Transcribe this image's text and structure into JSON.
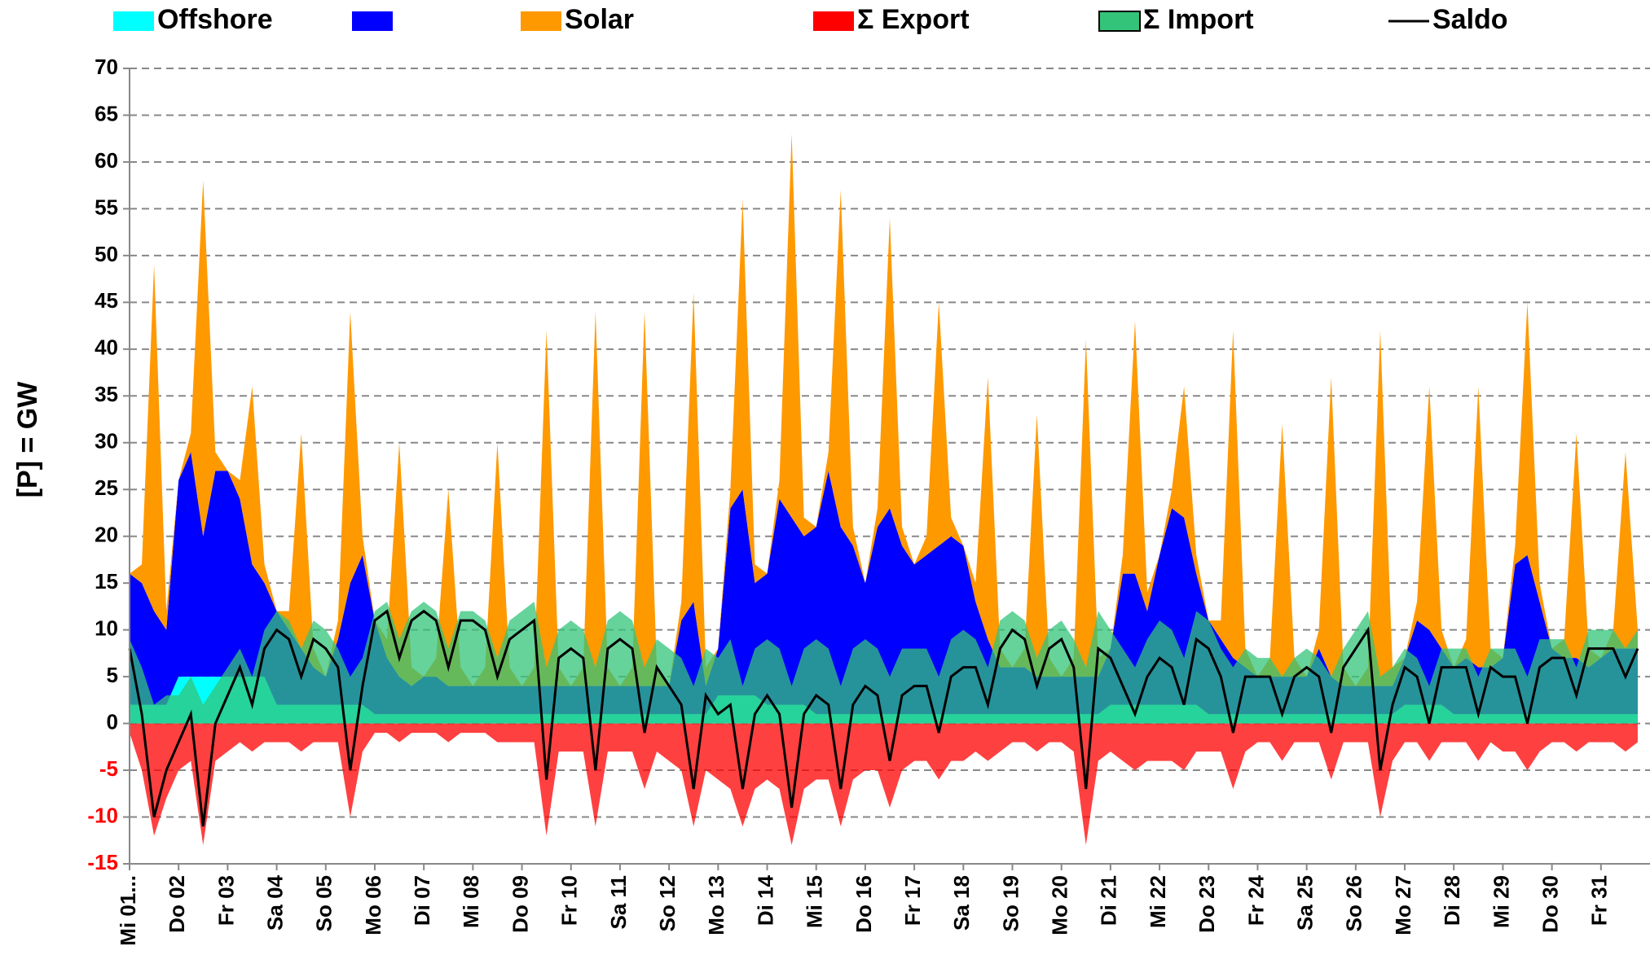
{
  "chart_data": {
    "type": "area",
    "y_label": "[P] = GW",
    "ylim": [
      -15,
      70
    ],
    "yticks": [
      -15,
      -10,
      -5,
      0,
      5,
      10,
      15,
      20,
      25,
      30,
      35,
      40,
      45,
      50,
      55,
      60,
      65,
      70
    ],
    "negative_tick_color": "#ff0000",
    "grid": true,
    "categories": [
      "Mi 01...",
      null,
      null,
      null,
      "Do 02",
      null,
      null,
      null,
      "Fr 03",
      null,
      null,
      null,
      "Sa 04",
      null,
      null,
      null,
      "So 05",
      null,
      null,
      null,
      "Mo 06",
      null,
      null,
      null,
      "Di 07",
      null,
      null,
      null,
      "Mi 08",
      null,
      null,
      null,
      "Do 09",
      null,
      null,
      null,
      "Fr 10",
      null,
      null,
      null,
      "Sa 11",
      null,
      null,
      null,
      "So 12",
      null,
      null,
      null,
      "Mo 13",
      null,
      null,
      null,
      "Di 14",
      null,
      null,
      null,
      "Mi 15",
      null,
      null,
      null,
      "Do 16",
      null,
      null,
      null,
      "Fr 17",
      null,
      null,
      null,
      "Sa 18",
      null,
      null,
      null,
      "So 19",
      null,
      null,
      null,
      "Mo 20",
      null,
      null,
      null,
      "Di 21",
      null,
      null,
      null,
      "Mi 22",
      null,
      null,
      null,
      "Do 23",
      null,
      null,
      null,
      "Fr 24",
      null,
      null,
      null,
      "Sa 25",
      null,
      null,
      null,
      "So 26",
      null,
      null,
      null,
      "Mo 27",
      null,
      null,
      null,
      "Di 28",
      null,
      null,
      null,
      "Mi 29",
      null,
      null,
      null,
      "Do 30",
      null,
      null,
      null,
      "Fr 31",
      null,
      null,
      null
    ],
    "series": [
      {
        "name": "Offshore",
        "color": "#00ffff",
        "style": "stacked-area",
        "values": [
          2,
          2,
          2,
          2,
          5,
          5,
          5,
          5,
          5,
          5,
          5,
          5,
          2,
          2,
          2,
          2,
          2,
          2,
          2,
          2,
          1,
          1,
          1,
          1,
          1,
          1,
          1,
          1,
          1,
          1,
          1,
          1,
          1,
          1,
          1,
          1,
          1,
          1,
          1,
          1,
          1,
          1,
          1,
          1,
          1,
          1,
          1,
          1,
          3,
          3,
          3,
          3,
          2,
          2,
          2,
          2,
          1,
          1,
          1,
          1,
          1,
          1,
          1,
          1,
          1,
          1,
          1,
          1,
          1,
          1,
          1,
          1,
          1,
          1,
          1,
          1,
          1,
          1,
          1,
          1,
          2,
          2,
          2,
          2,
          2,
          2,
          2,
          2,
          1,
          1,
          1,
          1,
          1,
          1,
          1,
          1,
          1,
          1,
          1,
          1,
          1,
          1,
          1,
          1,
          2,
          2,
          2,
          2,
          1,
          1,
          1,
          1,
          1,
          1,
          1,
          1,
          1,
          1,
          1,
          1,
          1,
          1,
          1,
          1
        ]
      },
      {
        "color": "#0000ff",
        "style": "stacked-area",
        "values": [
          14,
          13,
          10,
          8,
          21,
          24,
          15,
          22,
          22,
          19,
          12,
          10,
          10,
          8,
          6,
          4,
          3,
          7,
          13,
          16,
          10,
          6,
          4,
          3,
          4,
          4,
          3,
          3,
          3,
          3,
          3,
          3,
          3,
          3,
          3,
          3,
          3,
          3,
          3,
          3,
          3,
          3,
          3,
          3,
          3,
          10,
          12,
          3,
          5,
          20,
          22,
          12,
          14,
          22,
          20,
          18,
          20,
          26,
          20,
          18,
          14,
          20,
          22,
          18,
          16,
          17,
          18,
          19,
          18,
          12,
          8,
          5,
          5,
          5,
          4,
          4,
          4,
          4,
          4,
          4,
          6,
          14,
          14,
          10,
          16,
          21,
          20,
          14,
          10,
          8,
          6,
          5,
          4,
          4,
          4,
          4,
          4,
          7,
          4,
          3,
          3,
          3,
          3,
          3,
          5,
          9,
          8,
          6,
          5,
          6,
          5,
          5,
          6,
          16,
          17,
          12,
          7,
          6,
          6,
          5,
          6,
          7,
          7,
          7
        ]
      },
      {
        "name": "Solar",
        "color": "#ff9900",
        "style": "stacked-area",
        "values": [
          0,
          2,
          37,
          2,
          0,
          2,
          38,
          2,
          0,
          2,
          19,
          2,
          0,
          2,
          23,
          2,
          0,
          2,
          29,
          2,
          0,
          2,
          25,
          2,
          0,
          2,
          21,
          2,
          0,
          2,
          26,
          2,
          0,
          2,
          38,
          2,
          0,
          2,
          40,
          2,
          0,
          2,
          40,
          2,
          0,
          2,
          33,
          2,
          0,
          2,
          31,
          2,
          0,
          2,
          41,
          2,
          0,
          2,
          36,
          2,
          0,
          2,
          31,
          2,
          0,
          2,
          26,
          2,
          0,
          2,
          28,
          2,
          0,
          2,
          28,
          2,
          0,
          2,
          36,
          2,
          0,
          2,
          27,
          2,
          0,
          2,
          14,
          2,
          0,
          2,
          35,
          2,
          0,
          2,
          27,
          2,
          0,
          2,
          32,
          2,
          0,
          2,
          38,
          2,
          0,
          2,
          26,
          2,
          0,
          2,
          30,
          2,
          0,
          2,
          27,
          2,
          0,
          2,
          24,
          2,
          0,
          2,
          21,
          2
        ]
      },
      {
        "name": "Σ Export",
        "color": "#ff0000",
        "style": "area",
        "values": [
          -1,
          -5,
          -12,
          -8,
          -5,
          -4,
          -13,
          -4,
          -3,
          -2,
          -3,
          -2,
          -2,
          -2,
          -3,
          -2,
          -2,
          -2,
          -10,
          -3,
          -1,
          -1,
          -2,
          -1,
          -1,
          -1,
          -2,
          -1,
          -1,
          -1,
          -2,
          -2,
          -2,
          -2,
          -12,
          -3,
          -3,
          -3,
          -11,
          -3,
          -3,
          -3,
          -7,
          -3,
          -4,
          -5,
          -11,
          -5,
          -6,
          -7,
          -11,
          -7,
          -6,
          -7,
          -13,
          -7,
          -6,
          -6,
          -11,
          -6,
          -5,
          -5,
          -9,
          -5,
          -4,
          -4,
          -6,
          -4,
          -4,
          -3,
          -4,
          -3,
          -2,
          -2,
          -3,
          -2,
          -2,
          -3,
          -13,
          -4,
          -3,
          -4,
          -5,
          -4,
          -4,
          -4,
          -5,
          -3,
          -3,
          -3,
          -7,
          -3,
          -2,
          -2,
          -4,
          -2,
          -2,
          -2,
          -6,
          -2,
          -2,
          -2,
          -10,
          -4,
          -2,
          -2,
          -4,
          -2,
          -2,
          -2,
          -4,
          -2,
          -3,
          -3,
          -5,
          -3,
          -2,
          -2,
          -3,
          -2,
          -2,
          -2,
          -3,
          -2
        ]
      },
      {
        "name": "Σ Import",
        "color": "#33c47a",
        "style": "area",
        "values": [
          9,
          6,
          2,
          3,
          3,
          5,
          2,
          4,
          6,
          8,
          5,
          10,
          12,
          11,
          8,
          11,
          10,
          8,
          5,
          7,
          12,
          13,
          9,
          12,
          13,
          12,
          8,
          12,
          12,
          11,
          7,
          11,
          12,
          13,
          6,
          10,
          11,
          10,
          6,
          11,
          12,
          11,
          6,
          9,
          8,
          7,
          4,
          8,
          7,
          9,
          4,
          8,
          9,
          8,
          4,
          8,
          9,
          8,
          4,
          8,
          9,
          8,
          5,
          8,
          8,
          8,
          5,
          9,
          10,
          9,
          6,
          11,
          12,
          11,
          7,
          10,
          11,
          9,
          6,
          12,
          10,
          8,
          6,
          9,
          11,
          10,
          7,
          12,
          11,
          8,
          6,
          8,
          7,
          7,
          5,
          7,
          8,
          7,
          5,
          8,
          10,
          12,
          5,
          6,
          8,
          7,
          4,
          8,
          8,
          8,
          5,
          8,
          8,
          8,
          5,
          9,
          9,
          9,
          6,
          10,
          10,
          10,
          8,
          10
        ]
      },
      {
        "name": "Saldo",
        "color": "#000000",
        "style": "line",
        "values": [
          8,
          1,
          -10,
          -5,
          -2,
          1,
          -11,
          0,
          3,
          6,
          2,
          8,
          10,
          9,
          5,
          9,
          8,
          6,
          -5,
          4,
          11,
          12,
          7,
          11,
          12,
          11,
          6,
          11,
          11,
          10,
          5,
          9,
          10,
          11,
          -6,
          7,
          8,
          7,
          -5,
          8,
          9,
          8,
          -1,
          6,
          4,
          2,
          -7,
          3,
          1,
          2,
          -7,
          1,
          3,
          1,
          -9,
          1,
          3,
          2,
          -7,
          2,
          4,
          3,
          -4,
          3,
          4,
          4,
          -1,
          5,
          6,
          6,
          2,
          8,
          10,
          9,
          4,
          8,
          9,
          6,
          -7,
          8,
          7,
          4,
          1,
          5,
          7,
          6,
          2,
          9,
          8,
          5,
          -1,
          5,
          5,
          5,
          1,
          5,
          6,
          5,
          -1,
          6,
          8,
          10,
          -5,
          2,
          6,
          5,
          0,
          6,
          6,
          6,
          1,
          6,
          5,
          5,
          0,
          6,
          7,
          7,
          3,
          8,
          8,
          8,
          5,
          8
        ]
      }
    ]
  }
}
